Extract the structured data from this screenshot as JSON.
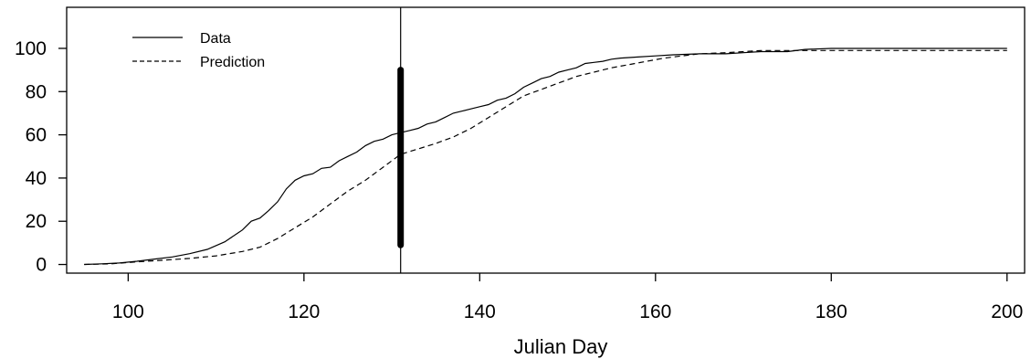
{
  "chart_data": {
    "type": "line",
    "title": "",
    "xlabel": "Julian Day",
    "ylabel": "",
    "xlim": [
      93,
      202
    ],
    "ylim": [
      -4,
      119
    ],
    "x_ticks": [
      100,
      120,
      140,
      160,
      180,
      200
    ],
    "y_ticks": [
      0,
      20,
      40,
      60,
      80,
      100
    ],
    "legend": {
      "placement": "top-left",
      "entries": [
        "Data",
        "Prediction"
      ]
    },
    "grid": false,
    "series": [
      {
        "name": "Data",
        "style": "solid",
        "points": [
          [
            95,
            0
          ],
          [
            97,
            0.3
          ],
          [
            99,
            0.7
          ],
          [
            101,
            1.5
          ],
          [
            103,
            2.5
          ],
          [
            105,
            3.5
          ],
          [
            107,
            5
          ],
          [
            109,
            7
          ],
          [
            111,
            10.5
          ],
          [
            113,
            16
          ],
          [
            114,
            20
          ],
          [
            115,
            21.5
          ],
          [
            116,
            25
          ],
          [
            117,
            29
          ],
          [
            118,
            35
          ],
          [
            119,
            39
          ],
          [
            120,
            41
          ],
          [
            121,
            42
          ],
          [
            122,
            44.5
          ],
          [
            123,
            45
          ],
          [
            124,
            48
          ],
          [
            125,
            50
          ],
          [
            126,
            52
          ],
          [
            127,
            55
          ],
          [
            128,
            57
          ],
          [
            129,
            58
          ],
          [
            130,
            60
          ],
          [
            131,
            61
          ],
          [
            132,
            62
          ],
          [
            133,
            63
          ],
          [
            134,
            65
          ],
          [
            135,
            66
          ],
          [
            136,
            68
          ],
          [
            137,
            70
          ],
          [
            138,
            71
          ],
          [
            139,
            72
          ],
          [
            140,
            73
          ],
          [
            141,
            74
          ],
          [
            142,
            76
          ],
          [
            143,
            77
          ],
          [
            144,
            79
          ],
          [
            145,
            82
          ],
          [
            146,
            84
          ],
          [
            147,
            86
          ],
          [
            148,
            87
          ],
          [
            149,
            89
          ],
          [
            150,
            90
          ],
          [
            151,
            91
          ],
          [
            152,
            93
          ],
          [
            153,
            93.5
          ],
          [
            154,
            94
          ],
          [
            155,
            95
          ],
          [
            156,
            95.5
          ],
          [
            158,
            96
          ],
          [
            160,
            96.5
          ],
          [
            162,
            97
          ],
          [
            165,
            97.5
          ],
          [
            168,
            97.5
          ],
          [
            170,
            98
          ],
          [
            172,
            98.5
          ],
          [
            175,
            98.5
          ],
          [
            177,
            99.5
          ],
          [
            180,
            100
          ],
          [
            190,
            100
          ],
          [
            200,
            100
          ]
        ]
      },
      {
        "name": "Prediction",
        "style": "dashed",
        "points": [
          [
            95,
            0
          ],
          [
            98,
            0.3
          ],
          [
            101,
            1.2
          ],
          [
            104,
            2
          ],
          [
            107,
            2.8
          ],
          [
            110,
            4
          ],
          [
            113,
            6
          ],
          [
            115,
            8
          ],
          [
            117,
            12
          ],
          [
            119,
            17
          ],
          [
            121,
            22
          ],
          [
            123,
            28
          ],
          [
            125,
            34
          ],
          [
            127,
            39
          ],
          [
            129,
            45
          ],
          [
            131,
            51
          ],
          [
            133,
            53.5
          ],
          [
            135,
            56
          ],
          [
            137,
            59
          ],
          [
            139,
            63
          ],
          [
            141,
            68
          ],
          [
            143,
            73
          ],
          [
            145,
            78
          ],
          [
            147,
            81
          ],
          [
            149,
            84
          ],
          [
            151,
            87
          ],
          [
            153,
            89
          ],
          [
            155,
            91
          ],
          [
            157,
            92.5
          ],
          [
            159,
            94
          ],
          [
            161,
            95.5
          ],
          [
            163,
            96.5
          ],
          [
            165,
            97.5
          ],
          [
            168,
            98
          ],
          [
            172,
            99
          ],
          [
            176,
            99
          ],
          [
            180,
            99
          ],
          [
            190,
            99
          ],
          [
            200,
            99
          ]
        ]
      }
    ],
    "reference_line": {
      "x": 131
    },
    "marked_interval": {
      "x": 131,
      "y_range": [
        9,
        90
      ]
    }
  }
}
